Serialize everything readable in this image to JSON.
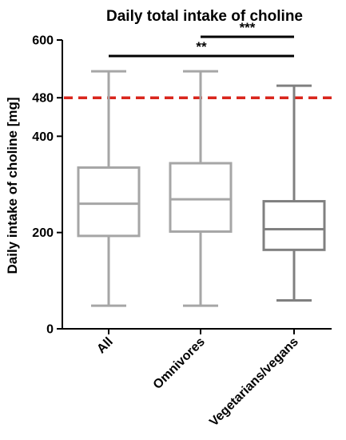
{
  "chart_data": {
    "type": "box",
    "title": "Daily total intake of choline",
    "xlabel": "",
    "ylabel": "Daily intake of choline [mg]",
    "ylim": [
      0,
      600
    ],
    "yticks": [
      0,
      200,
      400,
      480,
      600
    ],
    "ytick_labels": [
      "0",
      "200",
      "400",
      "480",
      "600"
    ],
    "categories": [
      "All",
      "Omnivores",
      "Vegetarians/vegans"
    ],
    "boxes": [
      {
        "category": "All",
        "min": 48,
        "q1": 193,
        "median": 260,
        "q3": 335,
        "max": 535,
        "color": "#a6a6a6"
      },
      {
        "category": "Omnivores",
        "min": 48,
        "q1": 202,
        "median": 269,
        "q3": 344,
        "max": 535,
        "color": "#a6a6a6"
      },
      {
        "category": "Vegetarians/vegans",
        "min": 59,
        "q1": 164,
        "median": 207,
        "q3": 265,
        "max": 505,
        "color": "#808080"
      }
    ],
    "reference_line": {
      "value": 480,
      "color": "#d9261c",
      "style": "dashed"
    },
    "significance": [
      {
        "from": "Omnivores",
        "to": "Vegetarians/vegans",
        "label": "***"
      },
      {
        "from": "All",
        "to": "Vegetarians/vegans",
        "label": "**"
      }
    ]
  }
}
